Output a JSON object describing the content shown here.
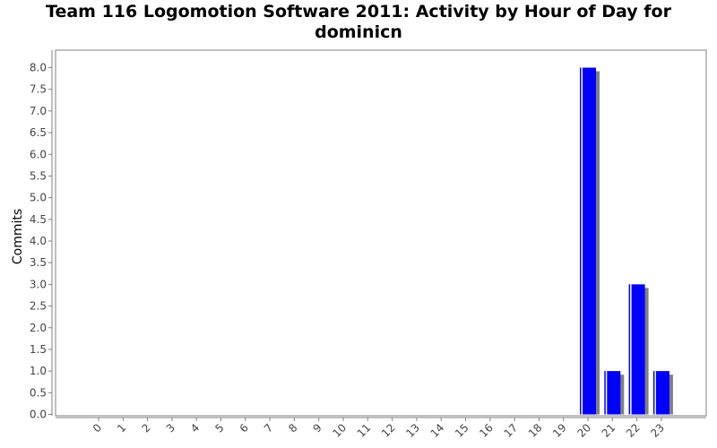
{
  "chart_data": {
    "type": "bar",
    "title": "Team 116 Logomotion Software 2011: Activity by Hour of Day for dominicn",
    "xlabel": "",
    "ylabel": "Commits",
    "categories": [
      "0",
      "1",
      "2",
      "3",
      "4",
      "5",
      "6",
      "7",
      "8",
      "9",
      "10",
      "11",
      "12",
      "13",
      "14",
      "15",
      "16",
      "17",
      "18",
      "19",
      "20",
      "21",
      "22",
      "23"
    ],
    "series": [
      {
        "values": [
          0,
          0,
          0,
          0,
          0,
          0,
          0,
          0,
          0,
          0,
          0,
          0,
          0,
          0,
          0,
          0,
          0,
          0,
          0,
          0,
          8,
          1,
          3,
          1
        ]
      }
    ],
    "ylim": [
      0,
      8.0
    ],
    "yticks": [
      "0.0",
      "0.5",
      "1.0",
      "1.5",
      "2.0",
      "2.5",
      "3.0",
      "3.5",
      "4.0",
      "4.5",
      "5.0",
      "5.5",
      "6.0",
      "6.5",
      "7.0",
      "7.5",
      "8.0"
    ],
    "grid": false,
    "legend": "none",
    "colors": {
      "bar": "#0000ff",
      "bar_shadow": "#808080",
      "bar_highlight": "#ffffff",
      "axis": "#808080",
      "text": "#444444"
    }
  }
}
